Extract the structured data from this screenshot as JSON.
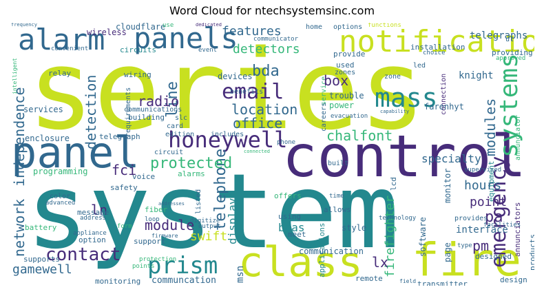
{
  "title": "Word Cloud for ntechsystemsinc.com",
  "palette": {
    "yellow_green": "#c8e020",
    "teal": "#23888e",
    "dark_purple": "#472c7a",
    "blue": "#31688e",
    "green": "#35b779",
    "light_green": "#6ccd5a"
  },
  "words": {
    "series": "series",
    "system": "system",
    "control": "control",
    "panel": "panel",
    "panels": "panels",
    "alarm": "alarm",
    "notification": "notification",
    "class": "class",
    "fire": "fire",
    "mass": "mass",
    "email": "email",
    "honeywell": "honeywell",
    "detectors": "detectors",
    "features": "features",
    "systems": "systems",
    "emergency": "emergency",
    "chalfont": "chalfont",
    "protected": "protected",
    "prism": "prism",
    "gamewell": "gamewell",
    "contact": "contact",
    "module": "module",
    "point": "point",
    "hours": "hours",
    "office": "office",
    "location": "location",
    "radio": "radio",
    "box": "box",
    "bda": "bda",
    "swift": "swift",
    "telephone": "telephone",
    "lx": "lx",
    "fci": "fci",
    "pm": "pm",
    "pa": "pa",
    "ln": "ln",
    "network": "network",
    "independence": "independence",
    "detection": "detection",
    "line": "line",
    "modules": "modules",
    "specialty": "specialty",
    "interface": "interface",
    "firefighter": "firefighter",
    "bdas": "bdas",
    "display": "display",
    "msn": "msn",
    "communcation": "communcation",
    "communication": "communication",
    "telegraphs": "telegraphs",
    "knight": "knight",
    "farenhyt": "farenhyt",
    "devices": "devices",
    "trouble": "trouble",
    "power": "power",
    "wireless": "wireless",
    "cloudflare": "cloudflare",
    "circuits": "circuits",
    "relay": "relay",
    "wiring": "wiring",
    "services": "services",
    "enclosure": "enclosure",
    "programming": "programming",
    "safety": "safety",
    "voice": "voice",
    "alarms": "alarms",
    "fiber": "fiber",
    "battery": "battery",
    "message": "message",
    "option": "option",
    "support": "support",
    "monitoring": "monitoring",
    "supports": "supports",
    "design": "design",
    "designed": "designed",
    "remote": "remote",
    "transmitter": "transmitter",
    "style": "style",
    "offers": "offers",
    "allows": "allows",
    "using": "using",
    "meet": "meet",
    "installation": "installation",
    "providing": "providing",
    "provide": "provide",
    "used": "used",
    "zones": "zones",
    "zone": "zone",
    "led": "led",
    "home": "home",
    "options": "options",
    "functions": "functions",
    "building": "building",
    "communications": "communications",
    "card": "card",
    "edition": "edition",
    "telegraph": "telegraph",
    "circuit": "circuit",
    "slc": "slc",
    "benefits": "benefits",
    "includes": "includes",
    "event": "event",
    "convenient": "convenient",
    "frequency": "frequency",
    "use": "use",
    "dedicated": "dedicated",
    "ul": "ul",
    "communicator": "communicator",
    "choice": "choice",
    "approved": "approved",
    "supervised": "supervised",
    "equipment": "equipment",
    "annunciator": "annunciator",
    "annunciators": "annunciators",
    "products": "products",
    "facilities": "facilities",
    "provides": "provides",
    "page": "page",
    "type": "type",
    "monitor": "monitor",
    "technology": "technology",
    "software": "software",
    "applications": "applications",
    "evacuation": "evacuation",
    "careers": "careers",
    "service": "service",
    "connection": "connection",
    "capability": "capability",
    "digitize": "digitize",
    "output": "output",
    "listed": "listed",
    "phone": "phone",
    "built": "built",
    "lcd": "lcd",
    "time": "time",
    "addresses": "addresses",
    "address": "address",
    "appliance": "appliance",
    "color": "color",
    "advanced": "advanced",
    "form": "form",
    "loop": "loop",
    "firmware": "firmware",
    "protection": "protection",
    "points": "points",
    "requirements": "requirements",
    "intelligent": "intelligent",
    "connected": "connected",
    "field": "field"
  }
}
